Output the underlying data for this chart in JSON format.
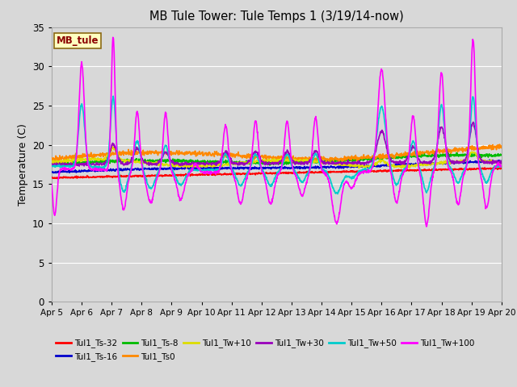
{
  "title": "MB Tule Tower: Tule Temps 1 (3/19/14-now)",
  "ylabel": "Temperature (C)",
  "ylim": [
    0,
    35
  ],
  "yticks": [
    0,
    5,
    10,
    15,
    20,
    25,
    30,
    35
  ],
  "x_labels": [
    "Apr 5",
    "Apr 6",
    "Apr 7",
    "Apr 8",
    "Apr 9",
    "Apr 10",
    "Apr 11",
    "Apr 12",
    "Apr 13",
    "Apr 14",
    "Apr 15",
    "Apr 16",
    "Apr 17",
    "Apr 18",
    "Apr 19",
    "Apr 20"
  ],
  "annotation_box": "MB_tule",
  "annotation_color": "#8B0000",
  "annotation_bg": "#FFFFC0",
  "annotation_border": "#8B6914",
  "bg_color": "#D8D8D8",
  "grid_color": "#FFFFFF",
  "series": [
    {
      "label": "Tul1_Ts-32",
      "color": "#FF0000",
      "lw": 1.2
    },
    {
      "label": "Tul1_Ts-16",
      "color": "#0000CC",
      "lw": 1.2
    },
    {
      "label": "Tul1_Ts-8",
      "color": "#00BB00",
      "lw": 1.2
    },
    {
      "label": "Tul1_Ts0",
      "color": "#FF8800",
      "lw": 1.2
    },
    {
      "label": "Tul1_Tw+10",
      "color": "#DDDD00",
      "lw": 1.2
    },
    {
      "label": "Tul1_Tw+30",
      "color": "#9900BB",
      "lw": 1.2
    },
    {
      "label": "Tul1_Tw+50",
      "color": "#00CCCC",
      "lw": 1.2
    },
    {
      "label": "Tul1_Tw+100",
      "color": "#FF00FF",
      "lw": 1.2
    }
  ]
}
